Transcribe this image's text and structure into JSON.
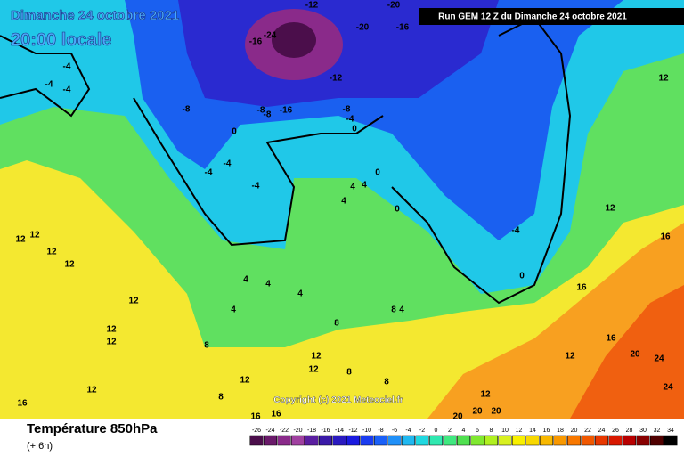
{
  "header": {
    "date": "Dimanche 24 octobre 2021",
    "time": "20:00 locale",
    "run": "Run GEM 12 Z du Dimanche 24 octobre 2021"
  },
  "copyright": "Copyright (c) 2021 Meteociel.fr",
  "footer": {
    "title": "Température 850hPa",
    "lead": "(+ 6h)"
  },
  "legend": {
    "labels": [
      -26,
      -24,
      -22,
      -20,
      -18,
      -16,
      -14,
      -12,
      -10,
      -8,
      -6,
      -4,
      -2,
      0,
      2,
      4,
      6,
      8,
      10,
      12,
      14,
      16,
      18,
      20,
      22,
      24,
      26,
      28,
      30,
      32,
      34
    ],
    "colors": [
      "#4b0e4b",
      "#6a1a6a",
      "#8a2a8a",
      "#a040a0",
      "#5a1ea0",
      "#3a1aa8",
      "#2a1ac0",
      "#1a1ae0",
      "#1a3cf0",
      "#1a60f8",
      "#2090f8",
      "#20b8f0",
      "#20d8e0",
      "#30e8b0",
      "#40e880",
      "#50e050",
      "#80e830",
      "#b0f020",
      "#d8f020",
      "#f8f000",
      "#f8d800",
      "#f8b800",
      "#f89800",
      "#f87800",
      "#f05800",
      "#e83800",
      "#d81800",
      "#b80000",
      "#880000",
      "#500000",
      "#000000"
    ]
  },
  "contour_labels": [
    -12,
    -20,
    -16,
    -24,
    -20,
    -16,
    -4,
    -4,
    -4,
    -12,
    -8,
    -8,
    -8,
    -16,
    -8,
    -4,
    0,
    0,
    -4,
    -4,
    -4,
    4,
    4,
    0,
    0,
    4,
    -4,
    0,
    12,
    12,
    12,
    12,
    4,
    4,
    4,
    4,
    8,
    8,
    4,
    12,
    12,
    12,
    12,
    16,
    8,
    12,
    12,
    8,
    8,
    20,
    20,
    24,
    24,
    20,
    16,
    16,
    16,
    12,
    12,
    12,
    16,
    16,
    12,
    20,
    12,
    8
  ]
}
